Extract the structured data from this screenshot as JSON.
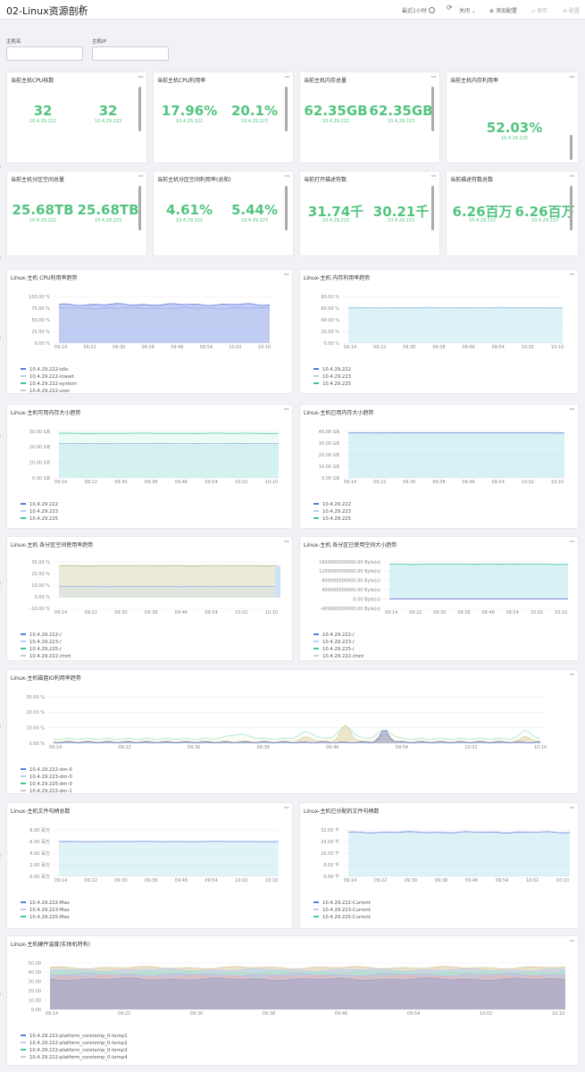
{
  "header": {
    "title": "02-Linux资源剖析",
    "time": "最近1小时",
    "off": "关闭",
    "add": "添加配置",
    "save": "保存",
    "share": "配置"
  },
  "filters": {
    "host_label": "主机名",
    "ip_label": "主机IP"
  },
  "stats": [
    {
      "title": "当前主机CPU核数",
      "v1": "32",
      "s1": "10.4.29.222",
      "v2": "32",
      "s2": "10.4.29.223"
    },
    {
      "title": "当前主机CPU利用率",
      "v1": "17.96%",
      "s1": "10.4.29.222",
      "v2": "20.1%",
      "s2": "10.4.29.223"
    },
    {
      "title": "当前主机内存总量",
      "v1": "62.35GB",
      "s1": "10.4.29.222",
      "v2": "62.35GB",
      "s2": "10.4.29.223"
    },
    {
      "title": "当前主机内存利用率",
      "v1": "52.03%",
      "s1": "10.4.29.225"
    },
    {
      "title": "当前主机分区空间总量",
      "v1": "25.68TB",
      "s1": "10.4.29.222",
      "v2": "25.68TB",
      "s2": "10.4.29.223"
    },
    {
      "title": "当前主机分区空间利用率(总和)",
      "v1": "4.61%",
      "s1": "10.4.29.222",
      "v2": "5.44%",
      "s2": "10.4.29.223"
    },
    {
      "title": "当前打开描述符数",
      "v1": "31.74千",
      "s1": "10.4.29.222",
      "v2": "30.21千",
      "s2": "10.4.29.223"
    },
    {
      "title": "当前描述符数总数",
      "v1": "6.26百万",
      "s1": "10.4.29.222",
      "v2": "6.26百万",
      "s2": "10.4.29.223"
    }
  ],
  "charts": [
    {
      "title": "Linux-主机 CPU利用率趋势",
      "yticks": [
        "100.00 %",
        "75.00 %",
        "50.00 %",
        "25.00 %",
        "0.00 %"
      ],
      "xticks": [
        "09:14",
        "09:22",
        "09:30",
        "09:38",
        "09:46",
        "09:54",
        "10:02",
        "10:10"
      ],
      "legend": [
        "10.4.29.222-idle",
        "10.4.29.222-iowait",
        "10.4.29.222-system",
        "10.4.29.222-user"
      ],
      "colors": [
        "#5b7be0",
        "#b8cff0",
        "#3cc99a",
        "#cccccc"
      ]
    },
    {
      "title": "Linux-主机 内存利用率趋势",
      "yticks": [
        "80.00 %",
        "60.00 %",
        "40.00 %",
        "20.00 %",
        "0.00 %"
      ],
      "xticks": [
        "09:14",
        "09:22",
        "09:30",
        "09:38",
        "09:46",
        "09:54",
        "10:02",
        "10:10"
      ],
      "legend": [
        "10.4.29.222",
        "10.4.29.223",
        "10.4.29.225"
      ],
      "colors": [
        "#5b7be0",
        "#b8cff0",
        "#3cc99a"
      ]
    },
    {
      "title": "Linux-主机可用内存大小趋势",
      "yticks": [
        "30.00 GB",
        "20.00 GB",
        "10.00 GB",
        "0.00 GB"
      ],
      "xticks": [
        "09:14",
        "09:22",
        "09:30",
        "09:38",
        "09:46",
        "09:54",
        "10:02",
        "10:10"
      ],
      "legend": [
        "10.4.29.222",
        "10.4.29.223",
        "10.4.29.225"
      ],
      "colors": [
        "#5b7be0",
        "#b8cff0",
        "#3cc99a"
      ]
    },
    {
      "title": "Linux-主机已用内存大小趋势",
      "yticks": [
        "40.00 GB",
        "30.00 GB",
        "20.00 GB",
        "10.00 GB",
        "0.00 GB"
      ],
      "xticks": [
        "09:14",
        "09:22",
        "09:30",
        "09:38",
        "09:46",
        "09:54",
        "10:02",
        "10:10"
      ],
      "legend": [
        "10.4.29.222",
        "10.4.29.223",
        "10.4.29.225"
      ],
      "colors": [
        "#5b7be0",
        "#b8cff0",
        "#3cc99a"
      ]
    },
    {
      "title": "Linux-主机 各分区空间使用率趋势",
      "yticks": [
        "30.00 %",
        "20.00 %",
        "10.00 %",
        "0.00 %",
        "-10.00 %"
      ],
      "xticks": [
        "09:14",
        "09:22",
        "09:30",
        "09:38",
        "09:46",
        "09:54",
        "10:02",
        "10:10"
      ],
      "legend": [
        "10.4.29.222-/",
        "10.4.29.223-/",
        "10.4.29.225-/",
        "10.4.29.222-/mnt"
      ],
      "colors": [
        "#5b7be0",
        "#b8cff0",
        "#3cc99a",
        "#cccccc"
      ]
    },
    {
      "title": "Linux-主机 各分区已使用空间大小趋势",
      "yticks": [
        "1600000000000.00 Byte(s)",
        "1200000000000.00 Byte(s)",
        "800000000000.00 Byte(s)",
        "400000000000.00 Byte(s)",
        "0.00 Byte(s)",
        "-400000000000.00 Byte(s)"
      ],
      "xticks": [
        "09:14",
        "09:22",
        "09:30",
        "09:38",
        "09:46",
        "09:54",
        "10:02",
        "10:10"
      ],
      "legend": [
        "10.4.29.222-/",
        "10.4.29.223-/",
        "10.4.29.225-/",
        "10.4.29.222-/mnt"
      ],
      "colors": [
        "#5b7be0",
        "#b8cff0",
        "#3cc99a",
        "#cccccc"
      ]
    },
    {
      "title": "Linux-主机磁盘IO利用率趋势",
      "yticks": [
        "30.00 %",
        "20.00 %",
        "10.00 %",
        "0.00 %"
      ],
      "xticks": [
        "09:14",
        "09:22",
        "09:30",
        "09:38",
        "09:46",
        "09:54",
        "10:02",
        "10:10"
      ],
      "legend": [
        "10.4.29.222-dm-0",
        "10.4.29.223-dm-0",
        "10.4.29.225-dm-0",
        "10.4.29.222-dm-1"
      ],
      "colors": [
        "#5b7be0",
        "#b8cff0",
        "#3cc99a",
        "#cccccc"
      ]
    },
    {
      "title": "Linux-主机文件句柄总数",
      "yticks": [
        "8.00 百万",
        "6.00 百万",
        "4.00 百万",
        "2.00 百万",
        "0.00 百万"
      ],
      "xticks": [
        "09:14",
        "09:22",
        "09:30",
        "09:38",
        "09:46",
        "09:54",
        "10:02",
        "10:10"
      ],
      "legend": [
        "10.4.29.222-Max",
        "10.4.29.223-Max",
        "10.4.29.225-Max"
      ],
      "colors": [
        "#5b7be0",
        "#b8cff0",
        "#3cc99a"
      ]
    },
    {
      "title": "Linux-主机已分配的文件句柄数",
      "yticks": [
        "32.00 千",
        "24.00 千",
        "16.00 千",
        "8.00 千",
        "0.00 千"
      ],
      "xticks": [
        "09:14",
        "09:22",
        "09:30",
        "09:38",
        "09:46",
        "09:54",
        "10:02",
        "10:10"
      ],
      "legend": [
        "10.4.29.222-Current",
        "10.4.29.223-Current",
        "10.4.29.225-Current"
      ],
      "colors": [
        "#5b7be0",
        "#b8cff0",
        "#3cc99a"
      ]
    },
    {
      "title": "Linux-主机硬件温度(实体机特有)",
      "yticks": [
        "50.00",
        "40.00",
        "30.00",
        "20.00",
        "10.00",
        "0.00"
      ],
      "xticks": [
        "09:14",
        "09:22",
        "09:30",
        "09:38",
        "09:46",
        "09:54",
        "10:02",
        "10:10"
      ],
      "legend": [
        "10.4.29.222-platform_coretemp_0-temp1",
        "10.4.29.222-platform_coretemp_0-temp2",
        "10.4.29.222-platform_coretemp_0-temp3",
        "10.4.29.222-platform_coretemp_0-temp4"
      ],
      "colors": [
        "#5b7be0",
        "#b8cff0",
        "#3cc99a",
        "#cccccc"
      ]
    }
  ]
}
